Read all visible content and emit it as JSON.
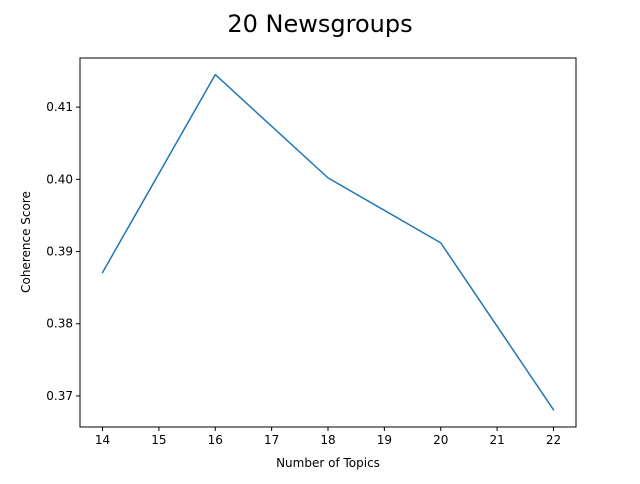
{
  "chart_data": {
    "type": "line",
    "title": "20 Newsgroups",
    "xlabel": "Number of Topics",
    "ylabel": "Coherence Score",
    "xlim": [
      13.6,
      22.4
    ],
    "ylim": [
      0.3657,
      0.4168
    ],
    "xticks": [
      14,
      15,
      16,
      17,
      18,
      19,
      20,
      21,
      22
    ],
    "yticks": [
      0.37,
      0.38,
      0.39,
      0.4,
      0.41
    ],
    "ytick_labels": [
      "0.37",
      "0.38",
      "0.39",
      "0.40",
      "0.41"
    ],
    "grid": false,
    "legend": "none",
    "series": [
      {
        "color": "#1f77b4",
        "x": [
          14,
          16,
          18,
          20,
          22
        ],
        "y": [
          0.3871,
          0.4145,
          0.4002,
          0.3912,
          0.3681
        ]
      }
    ]
  }
}
